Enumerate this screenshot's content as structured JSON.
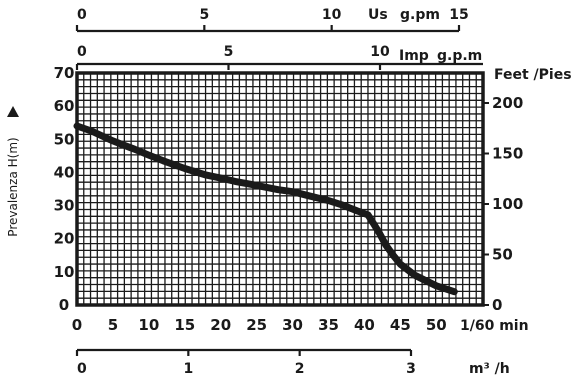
{
  "colors": {
    "ink": "#1a1a1a",
    "background": "#ffffff"
  },
  "chart_data": {
    "type": "line",
    "grid": true,
    "xlabel": "1/60 min",
    "ylabel": "Prevalenza H(m)",
    "right_axis_label": "Feet /Pies",
    "x_ticks": [
      0,
      5,
      10,
      15,
      20,
      25,
      30,
      35,
      40,
      45,
      50
    ],
    "y_ticks": [
      0,
      10,
      20,
      30,
      40,
      50,
      60,
      70
    ],
    "right_ticks": [
      0,
      50,
      100,
      150,
      200
    ],
    "xlim": [
      0,
      56.5
    ],
    "ylim": [
      0,
      70
    ],
    "right_lim": [
      0,
      229.7
    ],
    "us_axis": {
      "unit_left": "Us",
      "unit_right": "g.pm",
      "ticks": [
        "0",
        "5",
        "10",
        "15"
      ],
      "values": [
        0,
        5,
        10,
        15
      ]
    },
    "imp_axis": {
      "unit_left": "Imp",
      "unit_right": "g.p.m",
      "ticks": [
        "0",
        "5",
        "10"
      ],
      "values": [
        0,
        5,
        10
      ]
    },
    "m3_axis": {
      "unit": "m³ /h",
      "ticks": [
        "0",
        "1",
        "2",
        "3"
      ],
      "values": [
        0,
        1,
        2,
        3
      ]
    },
    "series": [
      {
        "x": [
          0,
          2,
          5,
          8,
          10,
          12,
          15,
          18,
          20,
          22,
          25,
          28,
          30,
          32,
          35,
          37,
          39,
          40.5,
          41,
          42,
          43,
          44,
          45,
          47,
          50,
          52.5
        ],
        "y": [
          54,
          52.5,
          49.5,
          47,
          45.2,
          43.5,
          41.2,
          39.2,
          38.3,
          37.3,
          36.1,
          34.8,
          34.2,
          33.1,
          31.5,
          30.1,
          28.4,
          27.2,
          25.5,
          22,
          18,
          15,
          12.3,
          9,
          5.8,
          4
        ]
      }
    ]
  }
}
